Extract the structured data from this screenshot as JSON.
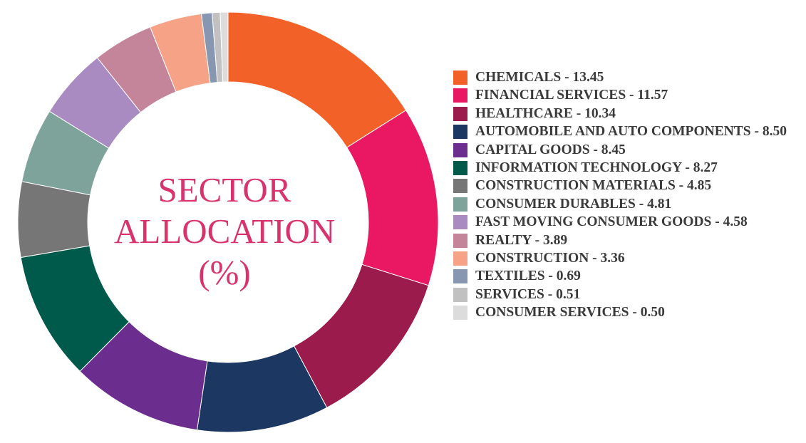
{
  "chart_data": {
    "type": "pie",
    "subtype": "donut",
    "center_text": [
      "SECTOR",
      "ALLOCATION",
      "(%)"
    ],
    "legend_position": "right",
    "slices": [
      {
        "label": "CHEMICALS",
        "value": 13.45,
        "legend_text": "CHEMICALS - 13.45",
        "color": "#f26128"
      },
      {
        "label": "FINANCIAL SERVICES",
        "value": 11.57,
        "legend_text": "FINANCIAL SERVICES - 11.57",
        "color": "#ea1762"
      },
      {
        "label": "HEALTHCARE",
        "value": 10.34,
        "legend_text": "HEALTHCARE - 10.34",
        "color": "#9a1b4c"
      },
      {
        "label": "AUTOMOBILE AND AUTO COMPONENTS",
        "value": 8.5,
        "legend_text": "AUTOMOBILE AND AUTO COMPONENTS - 8.50",
        "color": "#1c3762"
      },
      {
        "label": "CAPITAL GOODS",
        "value": 8.45,
        "legend_text": "CAPITAL GOODS - 8.45",
        "color": "#6b2e8f"
      },
      {
        "label": "INFORMATION TECHNOLOGY",
        "value": 8.27,
        "legend_text": "INFORMATION TECHNOLOGY - 8.27",
        "color": "#005a4b"
      },
      {
        "label": "CONSTRUCTION MATERIALS",
        "value": 4.85,
        "legend_text": "CONSTRUCTION MATERIALS - 4.85",
        "color": "#767676"
      },
      {
        "label": "CONSUMER DURABLES",
        "value": 4.81,
        "legend_text": "CONSUMER DURABLES - 4.81",
        "color": "#7ea39a"
      },
      {
        "label": "FAST MOVING CONSUMER GOODS",
        "value": 4.58,
        "legend_text": "FAST MOVING CONSUMER GOODS - 4.58",
        "color": "#a98bc1"
      },
      {
        "label": "REALTY",
        "value": 3.89,
        "legend_text": "REALTY - 3.89",
        "color": "#c4849a"
      },
      {
        "label": "CONSTRUCTION",
        "value": 3.36,
        "legend_text": "CONSTRUCTION - 3.36",
        "color": "#f5a286"
      },
      {
        "label": "TEXTILES",
        "value": 0.69,
        "legend_text": "TEXTILES - 0.69",
        "color": "#8797b1"
      },
      {
        "label": "SERVICES",
        "value": 0.51,
        "legend_text": "SERVICES - 0.51",
        "color": "#c1c1c1"
      },
      {
        "label": "CONSUMER SERVICES",
        "value": 0.5,
        "legend_text": "CONSUMER SERVICES - 0.50",
        "color": "#dcdcdc"
      }
    ]
  }
}
